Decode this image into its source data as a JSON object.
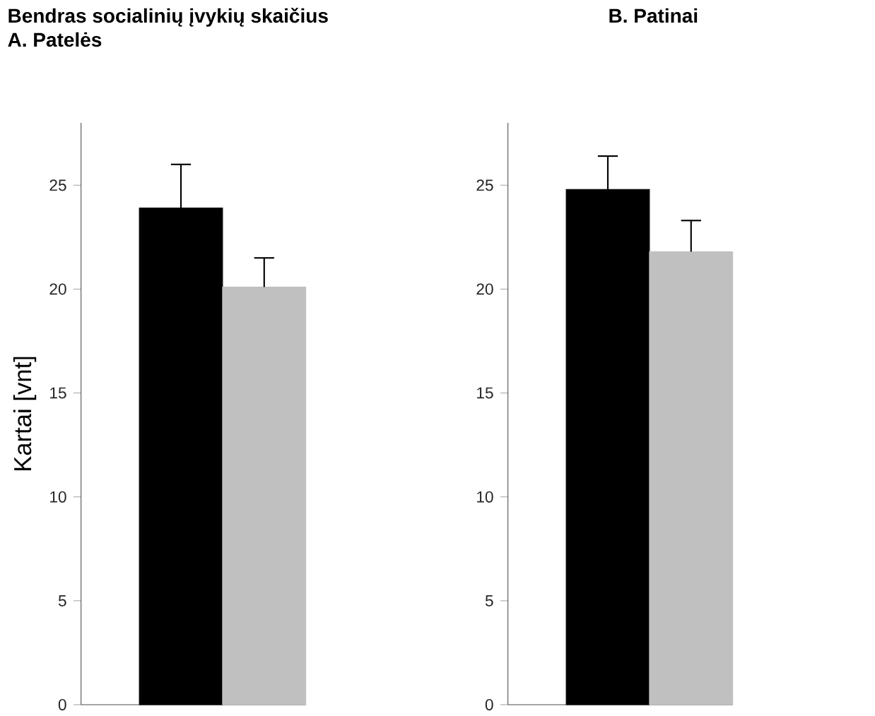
{
  "chart_data": [
    {
      "type": "bar",
      "title": "Bendras socialinių įvykių skaičius",
      "subtitle": "A. Patelės",
      "ylabel": "Kartai [vnt]",
      "categories": [
        null,
        null
      ],
      "values": [
        23.9,
        20.1
      ],
      "colors": [
        "#000000",
        "#c0c0c0"
      ],
      "errors": [
        [
          23.9,
          26.0
        ],
        [
          20.1,
          21.5
        ]
      ],
      "ylim": [
        0,
        28
      ],
      "yticks": [
        0,
        5,
        10,
        15,
        20,
        25
      ]
    },
    {
      "type": "bar",
      "title": "B. Patinai",
      "categories": [
        null,
        null
      ],
      "values": [
        24.8,
        21.8
      ],
      "colors": [
        "#000000",
        "#c0c0c0"
      ],
      "errors": [
        [
          24.8,
          26.4
        ],
        [
          21.8,
          23.3
        ]
      ],
      "ylim": [
        0,
        28
      ],
      "yticks": [
        0,
        5,
        10,
        15,
        20,
        25
      ]
    }
  ]
}
